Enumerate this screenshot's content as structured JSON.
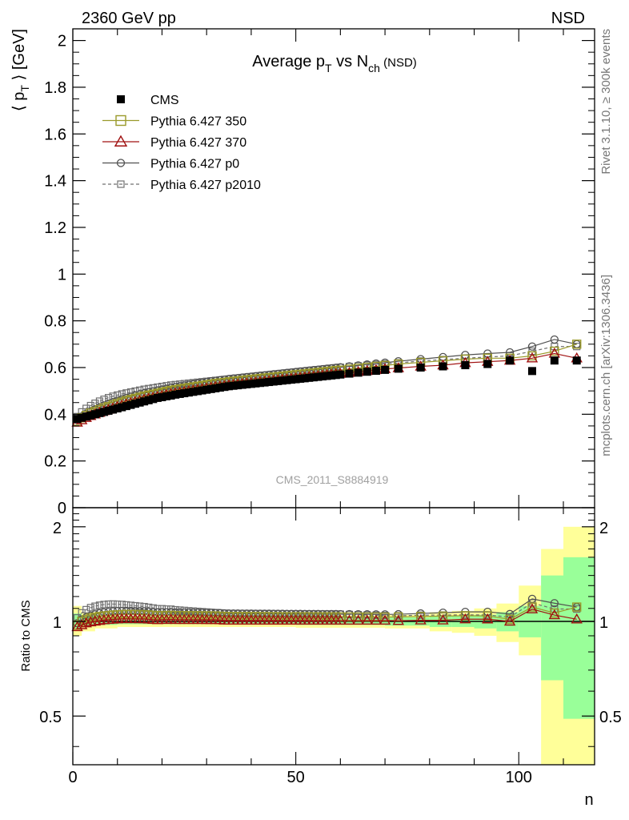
{
  "header": {
    "left": "2360 GeV pp",
    "right": "NSD"
  },
  "side_labels": {
    "rivet": "Rivet 3.1.10, ≥ 300k events",
    "mcplots": "mcplots.cern.ch [arXiv:1306.3436]"
  },
  "watermark": "CMS_2011_S8884919",
  "chart_data": [
    {
      "type": "scatter",
      "title_parts": {
        "a": "Average p",
        "a_sub": "T",
        "b": " vs N",
        "b_sub": "ch",
        "c": " (NSD)"
      },
      "ylabel_parts": {
        "open": "⟨ p",
        "sub": "T",
        "close": " ⟩ [GeV]"
      },
      "ylim": [
        0,
        2.05
      ],
      "xlim": [
        0,
        117
      ],
      "yticks": [
        0,
        0.2,
        0.4,
        0.6,
        0.8,
        1,
        1.2,
        1.4,
        1.6,
        1.8,
        2
      ],
      "ytick_labels": [
        "0",
        "0.2",
        "0.4",
        "0.6",
        "0.8",
        "1",
        "1.2",
        "1.4",
        "1.6",
        "1.8",
        "2"
      ],
      "legend_position": "top-left",
      "colors": {
        "cms": "#000000",
        "p350": "#9a9a2a",
        "p370": "#a01010",
        "p0": "#505050",
        "p2010": "#707070"
      },
      "series": [
        {
          "key": "cms",
          "name": "CMS",
          "marker": "filled-square",
          "style": "none",
          "x": [
            1,
            2,
            3,
            4,
            5,
            6,
            7,
            8,
            9,
            10,
            11,
            12,
            13,
            14,
            15,
            16,
            17,
            18,
            19,
            20,
            21,
            22,
            23,
            24,
            25,
            26,
            27,
            28,
            29,
            30,
            31,
            32,
            33,
            34,
            35,
            36,
            37,
            38,
            39,
            40,
            41,
            42,
            43,
            44,
            45,
            46,
            47,
            48,
            49,
            50,
            51,
            52,
            53,
            54,
            55,
            56,
            57,
            58,
            59,
            60,
            62,
            64,
            66,
            68,
            70,
            73,
            78,
            83,
            88,
            93,
            98,
            103,
            108,
            113
          ],
          "y": [
            0.38,
            0.385,
            0.39,
            0.395,
            0.4,
            0.405,
            0.41,
            0.415,
            0.42,
            0.425,
            0.43,
            0.435,
            0.44,
            0.445,
            0.45,
            0.455,
            0.46,
            0.465,
            0.47,
            0.473,
            0.477,
            0.48,
            0.484,
            0.487,
            0.49,
            0.493,
            0.496,
            0.499,
            0.502,
            0.505,
            0.508,
            0.511,
            0.514,
            0.517,
            0.52,
            0.522,
            0.524,
            0.526,
            0.528,
            0.53,
            0.532,
            0.534,
            0.536,
            0.538,
            0.54,
            0.542,
            0.544,
            0.546,
            0.548,
            0.55,
            0.552,
            0.554,
            0.556,
            0.558,
            0.56,
            0.562,
            0.564,
            0.566,
            0.568,
            0.57,
            0.574,
            0.578,
            0.582,
            0.586,
            0.59,
            0.595,
            0.6,
            0.605,
            0.61,
            0.615,
            0.63,
            0.585,
            0.63,
            0.63
          ]
        },
        {
          "key": "p350",
          "name": "Pythia 6.427 350",
          "marker": "open-square",
          "style": "solid",
          "x": [
            1,
            2,
            3,
            4,
            5,
            6,
            7,
            8,
            9,
            10,
            11,
            12,
            13,
            14,
            15,
            16,
            17,
            18,
            19,
            20,
            21,
            22,
            23,
            24,
            25,
            26,
            27,
            28,
            29,
            30,
            31,
            32,
            33,
            34,
            35,
            36,
            37,
            38,
            39,
            40,
            41,
            42,
            43,
            44,
            45,
            46,
            47,
            48,
            49,
            50,
            51,
            52,
            53,
            54,
            55,
            56,
            57,
            58,
            59,
            60,
            62,
            64,
            66,
            68,
            70,
            73,
            78,
            83,
            88,
            93,
            98,
            103,
            108,
            113
          ],
          "y": [
            0.37,
            0.385,
            0.395,
            0.405,
            0.412,
            0.42,
            0.427,
            0.433,
            0.44,
            0.446,
            0.452,
            0.458,
            0.463,
            0.468,
            0.473,
            0.478,
            0.482,
            0.486,
            0.49,
            0.494,
            0.498,
            0.502,
            0.505,
            0.508,
            0.511,
            0.514,
            0.517,
            0.52,
            0.523,
            0.526,
            0.529,
            0.532,
            0.534,
            0.536,
            0.539,
            0.541,
            0.543,
            0.545,
            0.547,
            0.549,
            0.551,
            0.553,
            0.555,
            0.557,
            0.559,
            0.561,
            0.563,
            0.565,
            0.567,
            0.569,
            0.571,
            0.573,
            0.575,
            0.577,
            0.579,
            0.581,
            0.583,
            0.585,
            0.587,
            0.589,
            0.593,
            0.597,
            0.601,
            0.605,
            0.609,
            0.615,
            0.622,
            0.629,
            0.636,
            0.64,
            0.64,
            0.65,
            0.67,
            0.7
          ]
        },
        {
          "key": "p370",
          "name": "Pythia 6.427 370",
          "marker": "open-triangle",
          "style": "solid",
          "x": [
            1,
            2,
            3,
            4,
            5,
            6,
            7,
            8,
            9,
            10,
            11,
            12,
            13,
            14,
            15,
            16,
            17,
            18,
            19,
            20,
            21,
            22,
            23,
            24,
            25,
            26,
            27,
            28,
            29,
            30,
            31,
            32,
            33,
            34,
            35,
            36,
            37,
            38,
            39,
            40,
            41,
            42,
            43,
            44,
            45,
            46,
            47,
            48,
            49,
            50,
            51,
            52,
            53,
            54,
            55,
            56,
            57,
            58,
            59,
            60,
            62,
            64,
            66,
            68,
            70,
            73,
            78,
            83,
            88,
            93,
            98,
            103,
            108,
            113
          ],
          "y": [
            0.365,
            0.375,
            0.385,
            0.393,
            0.4,
            0.407,
            0.414,
            0.42,
            0.426,
            0.432,
            0.438,
            0.443,
            0.448,
            0.453,
            0.458,
            0.463,
            0.467,
            0.471,
            0.475,
            0.479,
            0.483,
            0.487,
            0.49,
            0.493,
            0.496,
            0.499,
            0.502,
            0.505,
            0.508,
            0.511,
            0.514,
            0.517,
            0.519,
            0.521,
            0.524,
            0.526,
            0.528,
            0.53,
            0.532,
            0.534,
            0.536,
            0.538,
            0.54,
            0.542,
            0.544,
            0.546,
            0.548,
            0.55,
            0.552,
            0.554,
            0.556,
            0.558,
            0.56,
            0.562,
            0.564,
            0.566,
            0.568,
            0.57,
            0.572,
            0.574,
            0.578,
            0.582,
            0.586,
            0.59,
            0.594,
            0.598,
            0.605,
            0.61,
            0.62,
            0.625,
            0.63,
            0.64,
            0.66,
            0.64
          ]
        },
        {
          "key": "p0",
          "name": "Pythia 6.427 p0",
          "marker": "open-circle",
          "style": "solid",
          "x": [
            1,
            2,
            3,
            4,
            5,
            6,
            7,
            8,
            9,
            10,
            11,
            12,
            13,
            14,
            15,
            16,
            17,
            18,
            19,
            20,
            21,
            22,
            23,
            24,
            25,
            26,
            27,
            28,
            29,
            30,
            31,
            32,
            33,
            34,
            35,
            36,
            37,
            38,
            39,
            40,
            41,
            42,
            43,
            44,
            45,
            46,
            47,
            48,
            49,
            50,
            51,
            52,
            53,
            54,
            55,
            56,
            57,
            58,
            59,
            60,
            62,
            64,
            66,
            68,
            70,
            73,
            78,
            83,
            88,
            93,
            98,
            103,
            108,
            113
          ],
          "y": [
            0.375,
            0.39,
            0.402,
            0.412,
            0.421,
            0.43,
            0.438,
            0.445,
            0.452,
            0.458,
            0.464,
            0.47,
            0.475,
            0.48,
            0.485,
            0.49,
            0.494,
            0.498,
            0.502,
            0.506,
            0.51,
            0.514,
            0.517,
            0.52,
            0.523,
            0.526,
            0.529,
            0.532,
            0.535,
            0.538,
            0.541,
            0.543,
            0.546,
            0.548,
            0.551,
            0.553,
            0.555,
            0.557,
            0.559,
            0.561,
            0.563,
            0.565,
            0.567,
            0.569,
            0.571,
            0.573,
            0.575,
            0.577,
            0.579,
            0.581,
            0.583,
            0.585,
            0.587,
            0.589,
            0.591,
            0.593,
            0.595,
            0.597,
            0.599,
            0.601,
            0.605,
            0.609,
            0.613,
            0.617,
            0.621,
            0.627,
            0.636,
            0.645,
            0.654,
            0.66,
            0.665,
            0.69,
            0.72,
            0.7
          ]
        },
        {
          "key": "p2010",
          "name": "Pythia 6.427 p2010",
          "marker": "open-small-square",
          "style": "dashed",
          "x": [
            1,
            2,
            3,
            4,
            5,
            6,
            7,
            8,
            9,
            10,
            11,
            12,
            13,
            14,
            15,
            16,
            17,
            18,
            19,
            20,
            21,
            22,
            23,
            24,
            25,
            26,
            27,
            28,
            29,
            30,
            31,
            32,
            33,
            34,
            35,
            36,
            37,
            38,
            39,
            40,
            41,
            42,
            43,
            44,
            45,
            46,
            47,
            48,
            49,
            50,
            51,
            52,
            53,
            54,
            55,
            56,
            57,
            58,
            59,
            60,
            62,
            64,
            66,
            68,
            70,
            73,
            78,
            83,
            88,
            93,
            98,
            103,
            108,
            113
          ],
          "y": [
            0.39,
            0.41,
            0.425,
            0.437,
            0.447,
            0.456,
            0.464,
            0.471,
            0.477,
            0.482,
            0.487,
            0.491,
            0.495,
            0.499,
            0.503,
            0.507,
            0.51,
            0.513,
            0.516,
            0.519,
            0.522,
            0.525,
            0.527,
            0.529,
            0.531,
            0.533,
            0.535,
            0.537,
            0.539,
            0.541,
            0.543,
            0.545,
            0.547,
            0.549,
            0.551,
            0.553,
            0.555,
            0.557,
            0.559,
            0.561,
            0.563,
            0.565,
            0.567,
            0.569,
            0.571,
            0.573,
            0.575,
            0.577,
            0.579,
            0.581,
            0.583,
            0.585,
            0.587,
            0.589,
            0.591,
            0.593,
            0.595,
            0.597,
            0.599,
            0.601,
            0.604,
            0.607,
            0.61,
            0.613,
            0.616,
            0.62,
            0.628,
            0.634,
            0.64,
            0.645,
            0.65,
            0.67,
            0.69,
            0.69
          ]
        }
      ]
    },
    {
      "type": "line",
      "ylabel": "Ratio to CMS",
      "xlabel": "n",
      "xlim": [
        0,
        117
      ],
      "ylim": [
        0.35,
        2.3
      ],
      "log_y": true,
      "yticks": [
        0.5,
        1,
        2
      ],
      "ytick_labels": [
        "0.5",
        "1",
        "2"
      ],
      "xticks": [
        0,
        50,
        100
      ],
      "xtick_labels": [
        "0",
        "50",
        "100"
      ],
      "bands": {
        "edges": [
          0,
          2,
          5,
          10,
          20,
          30,
          40,
          50,
          60,
          70,
          80,
          85,
          90,
          95,
          100,
          105,
          110,
          117
        ],
        "yellow_lo": [
          0.9,
          0.93,
          0.95,
          0.96,
          0.96,
          0.96,
          0.96,
          0.955,
          0.955,
          0.95,
          0.93,
          0.92,
          0.9,
          0.86,
          0.78,
          0.3,
          0.3
        ],
        "yellow_hi": [
          1.12,
          1.07,
          1.05,
          1.04,
          1.04,
          1.04,
          1.04,
          1.045,
          1.045,
          1.05,
          1.07,
          1.08,
          1.1,
          1.14,
          1.3,
          1.7,
          2.0
        ],
        "green_lo": [
          0.95,
          0.97,
          0.975,
          0.98,
          0.98,
          0.98,
          0.98,
          0.975,
          0.975,
          0.97,
          0.96,
          0.96,
          0.95,
          0.93,
          0.89,
          0.65,
          0.49
        ],
        "green_hi": [
          1.06,
          1.04,
          1.025,
          1.02,
          1.02,
          1.02,
          1.02,
          1.025,
          1.025,
          1.03,
          1.04,
          1.04,
          1.05,
          1.07,
          1.12,
          1.4,
          1.6
        ]
      }
    }
  ]
}
